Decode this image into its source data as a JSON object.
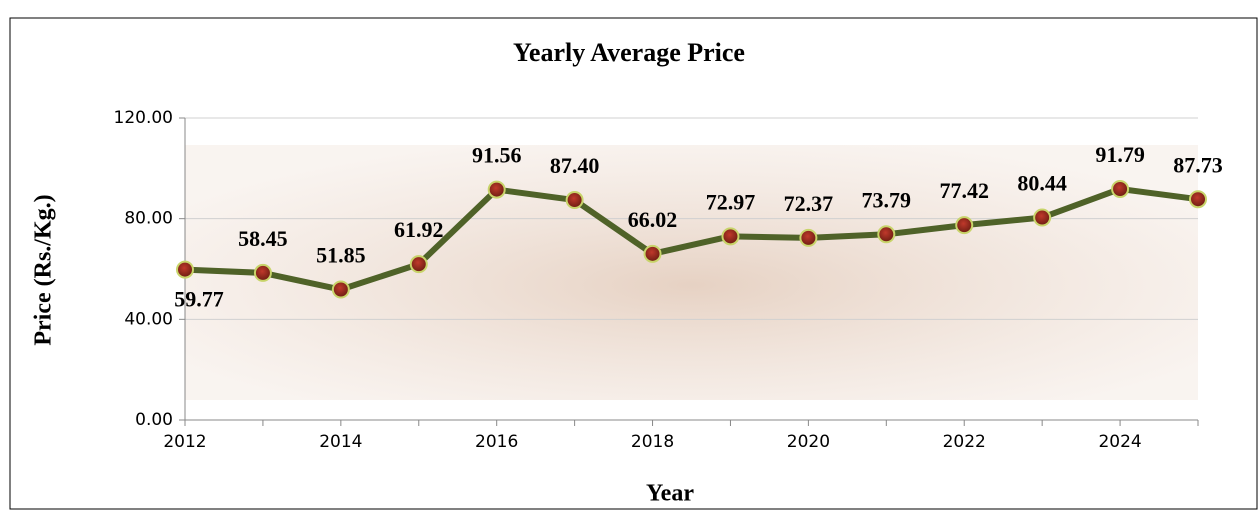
{
  "chart_data": {
    "type": "line",
    "title": "Yearly Average Price",
    "x_label": "Year",
    "y_label": "Price (Rs./Kg.)",
    "x": [
      2012,
      2013,
      2014,
      2015,
      2016,
      2017,
      2018,
      2019,
      2020,
      2021,
      2022,
      2023,
      2024,
      2025
    ],
    "values": [
      59.77,
      58.45,
      51.85,
      61.92,
      91.56,
      87.4,
      66.02,
      72.97,
      72.37,
      73.79,
      77.42,
      80.44,
      91.79,
      87.73
    ],
    "value_labels": [
      "59.77",
      "58.45",
      "51.85",
      "61.92",
      "91.56",
      "87.40",
      "66.02",
      "72.97",
      "72.37",
      "73.79",
      "77.42",
      "80.44",
      "91.79",
      "87.73"
    ],
    "color": "#4f6228",
    "xlim": [
      2012,
      2025
    ],
    "xticks": [
      2012,
      2014,
      2016,
      2018,
      2020,
      2022,
      2024
    ],
    "ylim": [
      0,
      120
    ],
    "yticks": [
      {
        "value": 0,
        "label": "0.00"
      },
      {
        "value": 40,
        "label": "40.00"
      },
      {
        "value": 80,
        "label": "80.00"
      },
      {
        "value": 120,
        "label": "120.00"
      }
    ],
    "grid": true
  }
}
